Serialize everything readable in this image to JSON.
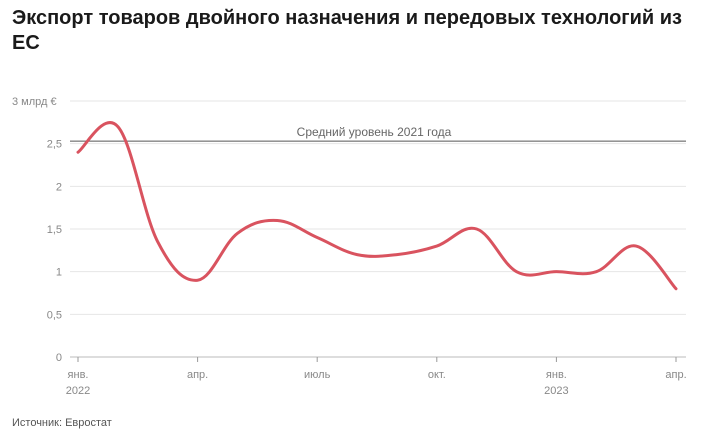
{
  "title": "Экспорт товаров двойного назначения и передовых технологий из ЕС",
  "source": "Источник: Евростат",
  "colors": {
    "line": "#d9535f",
    "grid": "#e6e6e6",
    "reference": "#555555",
    "text": "#777777"
  },
  "chart_data": {
    "type": "line",
    "title": "Экспорт товаров двойного назначения и передовых технологий из ЕС",
    "ylabel": "",
    "y_unit_label": "3 млрд €",
    "ylim": [
      0,
      3
    ],
    "y_ticks": [
      0,
      0.5,
      1,
      1.5,
      2,
      2.5,
      3
    ],
    "y_tick_labels": [
      "0",
      "0,5",
      "1",
      "1,5",
      "2",
      "2,5",
      "3 млрд €"
    ],
    "x_tick_labels": [
      {
        "month_index": 0,
        "line1": "янв.",
        "line2": "2022"
      },
      {
        "month_index": 3,
        "line1": "апр.",
        "line2": ""
      },
      {
        "month_index": 6,
        "line1": "июль",
        "line2": ""
      },
      {
        "month_index": 9,
        "line1": "окт.",
        "line2": ""
      },
      {
        "month_index": 12,
        "line1": "янв.",
        "line2": "2023"
      },
      {
        "month_index": 15,
        "line1": "апр.",
        "line2": ""
      }
    ],
    "x": [
      "2022-01",
      "2022-02",
      "2022-03",
      "2022-04",
      "2022-05",
      "2022-06",
      "2022-07",
      "2022-08",
      "2022-09",
      "2022-10",
      "2022-11",
      "2022-12",
      "2023-01",
      "2023-02",
      "2023-03",
      "2023-04"
    ],
    "series": [
      {
        "values": [
          2.4,
          2.7,
          1.35,
          0.9,
          1.45,
          1.6,
          1.4,
          1.2,
          1.2,
          1.3,
          1.5,
          1.0,
          1.0,
          1.0,
          1.3,
          0.8
        ]
      }
    ],
    "reference_line": {
      "value": 2.53,
      "label": "Средний уровень 2021 года"
    },
    "grid": true
  }
}
